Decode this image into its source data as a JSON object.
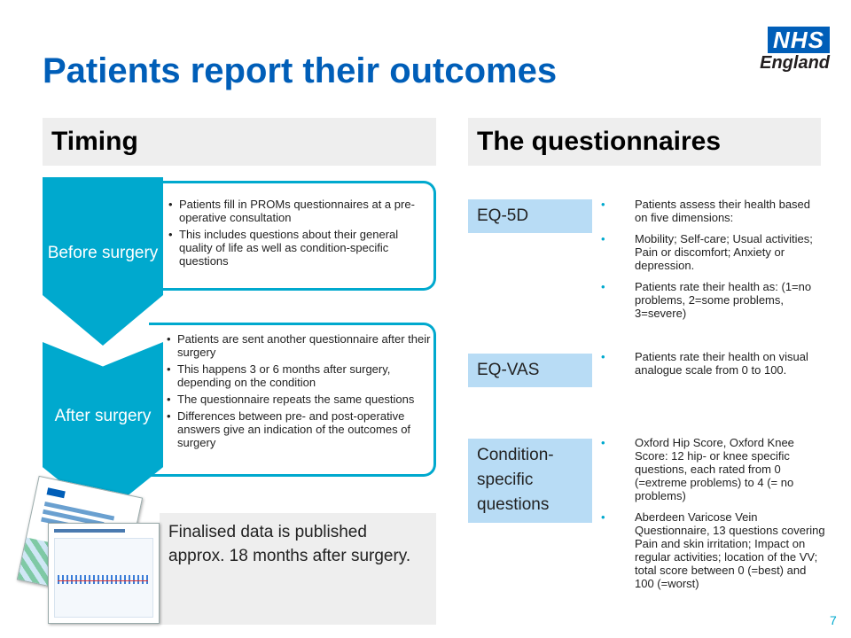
{
  "title": "Patients report their outcomes",
  "logo": {
    "main": "NHS",
    "sub": "England"
  },
  "colors": {
    "brand_blue": "#005eb8",
    "aqua": "#00a9ce",
    "light_blue": "#b8dcf5",
    "grey": "#eeeeee"
  },
  "timing": {
    "header": "Timing",
    "stages": [
      {
        "label": "Before surgery",
        "bullets": [
          "Patients fill in PROMs questionnaires at a pre-operative consultation",
          "This includes questions about their general quality of life as well as condition-specific questions"
        ]
      },
      {
        "label": "After surgery",
        "bullets": [
          "Patients are sent another questionnaire after their surgery",
          "This happens 3 or 6 months after surgery, depending on the condition",
          "The questionnaire repeats the same questions",
          "Differences between pre- and post-operative answers give an indication of the outcomes of surgery"
        ]
      }
    ],
    "publication": "Finalised data is published approx. 18 months after surgery."
  },
  "questionnaires": {
    "header": "The questionnaires",
    "items": [
      {
        "label": "EQ-5D",
        "bullets": [
          "Patients assess their health based on five dimensions:",
          "Mobility; Self-care; Usual activities; Pain or discomfort; Anxiety or depression.",
          "Patients rate their health as: (1=no problems, 2=some problems, 3=severe)"
        ]
      },
      {
        "label": "EQ-VAS",
        "bullets": [
          "Patients rate their health on visual analogue scale from 0 to 100."
        ]
      },
      {
        "label": "Condition-specific questions",
        "bullets": [
          "Oxford Hip Score, Oxford Knee Score: 12 hip- or knee specific questions, each rated from 0 (=extreme problems) to 4 (= no problems)",
          "Aberdeen Varicose Vein Questionnaire, 13 questions covering Pain and skin irritation; Impact on regular activities; location of the VV; total score between 0 (=best) and 100 (=worst)"
        ]
      }
    ]
  },
  "page_number": "7"
}
